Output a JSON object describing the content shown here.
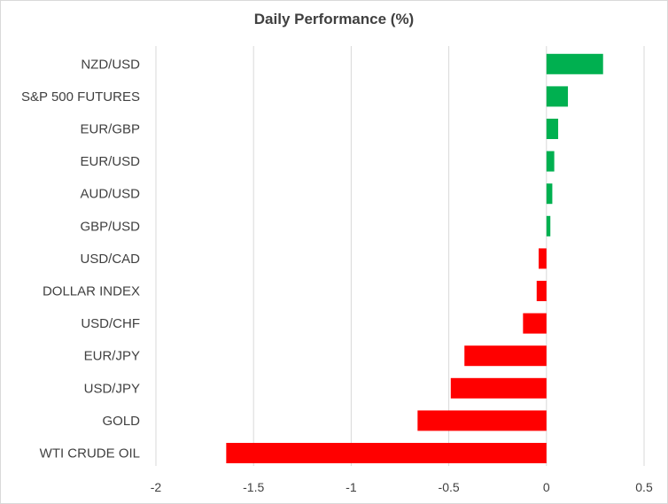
{
  "chart_data": {
    "type": "bar",
    "orientation": "horizontal",
    "title": "Daily Performance (%)",
    "categories": [
      "NZD/USD",
      "S&P 500 FUTURES",
      "EUR/GBP",
      "EUR/USD",
      "AUD/USD",
      "GBP/USD",
      "USD/CAD",
      "DOLLAR INDEX",
      "USD/CHF",
      "EUR/JPY",
      "USD/JPY",
      "GOLD",
      "WTI CRUDE OIL"
    ],
    "values": [
      0.29,
      0.11,
      0.06,
      0.04,
      0.03,
      0.02,
      -0.04,
      -0.05,
      -0.12,
      -0.42,
      -0.49,
      -0.66,
      -1.64
    ],
    "xlim": [
      -2,
      0.5
    ],
    "xticks": [
      "-2",
      "-1.5",
      "-1",
      "-0.5",
      "0",
      "0.5"
    ],
    "grid": "vertical",
    "colors": {
      "positive": "#00b050",
      "negative": "#ff0000",
      "grid": "#d9d9d9",
      "text": "#404040"
    }
  }
}
